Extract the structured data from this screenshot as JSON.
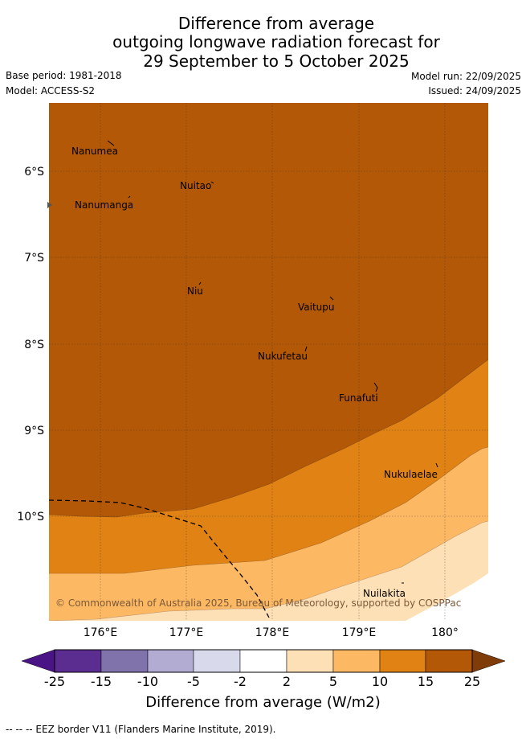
{
  "title": {
    "line1": "Difference from average",
    "line2": "outgoing longwave radiation forecast for",
    "line3": "29 September to 5 October 2025"
  },
  "meta": {
    "base_period": "Base period: 1981-2018",
    "model": "Model: ACCESS-S2",
    "model_run": "Model run: 22/09/2025",
    "issued": "Issued: 24/09/2025"
  },
  "map": {
    "lat_labels": [
      "6°S",
      "7°S",
      "8°S",
      "9°S",
      "10°S"
    ],
    "lon_labels": [
      "176°E",
      "177°E",
      "178°E",
      "179°E",
      "180°"
    ],
    "places": [
      "Nanumea",
      "Nuitao",
      "Nanumanga",
      "Niu",
      "Vaitupu",
      "Nukufetau",
      "Funafuti",
      "Nukulaelae",
      "Nuilakita"
    ],
    "copyright": "© Commonwealth of Australia 2025, Bureau of Meteorology, supported by COSPPac"
  },
  "colorbar": {
    "labels": [
      "-25",
      "-15",
      "-10",
      "-5",
      "-2",
      "2",
      "5",
      "10",
      "15",
      "25"
    ],
    "colors": [
      "#4a1486",
      "#5c2d91",
      "#8073ac",
      "#b2abd2",
      "#d8daeb",
      "#ffffff",
      "#fee0b6",
      "#fdb863",
      "#e08214",
      "#b35806",
      "#7f3b08"
    ],
    "title": "Difference from average (W/m2)"
  },
  "footer": "--  --  -- EEZ border V11 (Flanders Marine Institute, 2019)."
}
